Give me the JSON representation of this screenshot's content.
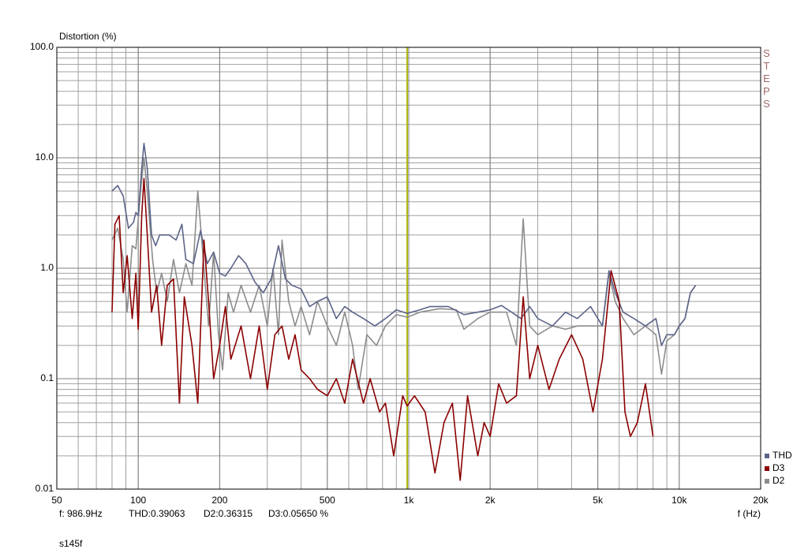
{
  "chart_data": {
    "type": "line",
    "y_label": "Distortion (%)",
    "x_label": "f (Hz)",
    "side_label": "STEPS",
    "footer": "s145f",
    "readout": [
      "f: 986.9Hz",
      "THD:0.39063",
      "D2:0.36315",
      "D3:0.05650 %"
    ],
    "cursor_x": 986.9,
    "cursor_color": "#c8c800",
    "xscale": "log",
    "yscale": "log",
    "grid": true,
    "legend": "bottom-right",
    "xlim": [
      50,
      20000
    ],
    "ylim": [
      0.01,
      100
    ],
    "xticks": [
      50,
      100,
      200,
      500,
      {
        "value": 1000,
        "label": "1k"
      },
      {
        "value": 2000,
        "label": "2k"
      },
      {
        "value": 5000,
        "label": "5k"
      },
      {
        "value": 10000,
        "label": "10k"
      },
      {
        "value": 20000,
        "label": "20k"
      }
    ],
    "yticks": [
      0.01,
      0.1,
      {
        "value": 1,
        "label": "1.0"
      },
      {
        "value": 10,
        "label": "10.0"
      },
      {
        "value": 100,
        "label": "100.0"
      }
    ],
    "series": [
      {
        "name": "THD",
        "color": "#5c6488",
        "x": [
          80,
          84,
          88,
          92,
          96,
          98,
          100,
          103,
          105,
          108,
          112,
          116,
          120,
          130,
          138,
          145,
          150,
          160,
          170,
          180,
          190,
          200,
          210,
          220,
          235,
          250,
          270,
          290,
          310,
          330,
          350,
          370,
          400,
          430,
          460,
          500,
          540,
          580,
          620,
          680,
          750,
          820,
          900,
          986.9,
          1100,
          1200,
          1400,
          1600,
          1800,
          2000,
          2200,
          2400,
          2600,
          2800,
          3000,
          3400,
          3800,
          4200,
          4700,
          5200,
          5500,
          5800,
          6200,
          6800,
          7500,
          8200,
          8600,
          9000,
          9600,
          10000,
          10500,
          11000,
          11500
        ],
        "values": [
          5,
          5.6,
          4.5,
          2.3,
          2.6,
          3.2,
          3.0,
          8,
          13.5,
          8,
          2,
          1.6,
          2,
          2,
          1.8,
          2.5,
          1.2,
          1.1,
          2.2,
          1.1,
          1.4,
          0.9,
          0.85,
          1.0,
          1.3,
          1.1,
          0.75,
          0.6,
          0.8,
          1.6,
          0.8,
          0.7,
          0.65,
          0.45,
          0.5,
          0.55,
          0.35,
          0.45,
          0.4,
          0.35,
          0.3,
          0.35,
          0.42,
          0.39,
          0.42,
          0.45,
          0.45,
          0.38,
          0.4,
          0.42,
          0.46,
          0.4,
          0.35,
          0.45,
          0.35,
          0.3,
          0.4,
          0.35,
          0.45,
          0.3,
          0.95,
          0.6,
          0.4,
          0.35,
          0.3,
          0.35,
          0.2,
          0.25,
          0.25,
          0.3,
          0.35,
          0.6,
          0.7
        ]
      },
      {
        "name": "D3",
        "color": "#8b0000",
        "x": [
          80,
          82,
          85,
          88,
          91,
          95,
          98,
          100,
          103,
          105,
          108,
          112,
          117,
          122,
          128,
          135,
          142,
          148,
          158,
          166,
          175,
          182,
          190,
          200,
          210,
          220,
          240,
          260,
          280,
          300,
          320,
          340,
          360,
          380,
          400,
          430,
          460,
          500,
          540,
          580,
          620,
          680,
          720,
          780,
          820,
          880,
          950,
          986.9,
          1050,
          1150,
          1250,
          1350,
          1450,
          1550,
          1650,
          1800,
          1900,
          2000,
          2150,
          2300,
          2500,
          2650,
          2800,
          3000,
          3300,
          3600,
          4000,
          4400,
          4800,
          5200,
          5600,
          6000,
          6300,
          6600,
          7000,
          7500,
          8000
        ],
        "values": [
          0.4,
          2.5,
          3,
          0.6,
          1.3,
          0.35,
          0.9,
          0.28,
          3,
          6.5,
          2,
          0.4,
          0.7,
          0.2,
          0.7,
          0.8,
          0.06,
          0.55,
          0.2,
          0.06,
          1.8,
          0.5,
          0.1,
          0.2,
          0.45,
          0.15,
          0.3,
          0.1,
          0.3,
          0.08,
          0.25,
          0.3,
          0.15,
          0.25,
          0.12,
          0.1,
          0.08,
          0.07,
          0.1,
          0.06,
          0.15,
          0.06,
          0.1,
          0.05,
          0.06,
          0.02,
          0.07,
          0.0565,
          0.07,
          0.05,
          0.014,
          0.04,
          0.06,
          0.012,
          0.07,
          0.02,
          0.04,
          0.03,
          0.09,
          0.06,
          0.07,
          0.55,
          0.1,
          0.2,
          0.08,
          0.15,
          0.25,
          0.15,
          0.05,
          0.15,
          0.95,
          0.5,
          0.05,
          0.03,
          0.04,
          0.09,
          0.03
        ]
      },
      {
        "name": "D2",
        "color": "#8c8c8c",
        "x": [
          80,
          84,
          88,
          91,
          95,
          98,
          102,
          105,
          108,
          113,
          117,
          122,
          128,
          135,
          142,
          150,
          158,
          166,
          175,
          182,
          190,
          198,
          205,
          215,
          225,
          240,
          260,
          280,
          300,
          315,
          330,
          340,
          360,
          380,
          400,
          430,
          460,
          500,
          540,
          580,
          620,
          650,
          700,
          760,
          820,
          900,
          986.9,
          1100,
          1300,
          1500,
          1600,
          1800,
          2000,
          2300,
          2500,
          2650,
          2800,
          3000,
          3400,
          3800,
          4200,
          4700,
          5200,
          5500,
          5800,
          6200,
          6800,
          7500,
          8200,
          8600,
          9000,
          9600,
          10000,
          10500,
          11000,
          11500
        ],
        "values": [
          1.8,
          2.3,
          1.2,
          0.4,
          1.6,
          1.5,
          5,
          10,
          5,
          1.2,
          0.6,
          0.9,
          0.5,
          1.2,
          0.6,
          1.1,
          0.7,
          5,
          1,
          0.3,
          1.4,
          0.25,
          0.12,
          0.6,
          0.4,
          0.7,
          0.4,
          0.7,
          0.3,
          1.0,
          0.25,
          1.8,
          0.5,
          0.3,
          0.45,
          0.25,
          0.5,
          0.3,
          0.2,
          0.4,
          0.2,
          0.08,
          0.25,
          0.2,
          0.3,
          0.38,
          0.36,
          0.4,
          0.43,
          0.42,
          0.28,
          0.35,
          0.4,
          0.4,
          0.2,
          2.8,
          0.3,
          0.25,
          0.3,
          0.28,
          0.3,
          0.3,
          0.3,
          0.9,
          0.5,
          0.35,
          0.25,
          0.3,
          0.25,
          0.11,
          0.22,
          0.25,
          0.3,
          0.35,
          0.6,
          0.7
        ]
      }
    ]
  }
}
